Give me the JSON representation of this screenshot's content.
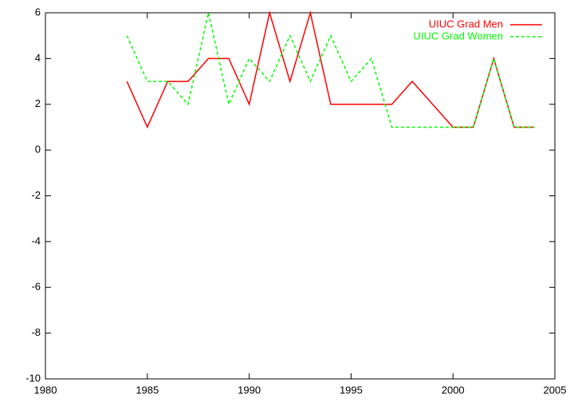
{
  "chart_data": {
    "type": "line",
    "x": [
      1984,
      1985,
      1986,
      1987,
      1988,
      1989,
      1990,
      1991,
      1992,
      1993,
      1994,
      1995,
      1996,
      1997,
      1998,
      1999,
      2000,
      2001,
      2002,
      2003,
      2004
    ],
    "series": [
      {
        "name": "UIUC Grad Men",
        "color": "#ff0000",
        "dashed": false,
        "values": [
          3,
          1,
          3,
          3,
          4,
          4,
          2,
          6,
          3,
          6,
          2,
          2,
          2,
          2,
          3,
          2,
          1,
          1,
          4,
          1,
          1
        ]
      },
      {
        "name": "UIUC Grad Women",
        "color": "#00ff00",
        "dashed": true,
        "values": [
          5,
          3,
          3,
          2,
          6,
          2,
          4,
          3,
          5,
          3,
          5,
          3,
          4,
          1,
          1,
          1,
          1,
          1,
          4,
          1,
          1
        ]
      }
    ],
    "xlim": [
      1980,
      2005
    ],
    "xticks": [
      1980,
      1985,
      1990,
      1995,
      2000,
      2005
    ],
    "ylim": [
      -10,
      6
    ],
    "yticks": [
      -10,
      -8,
      -6,
      -4,
      -2,
      0,
      2,
      4,
      6
    ],
    "grid": false,
    "legend": "top-right"
  }
}
